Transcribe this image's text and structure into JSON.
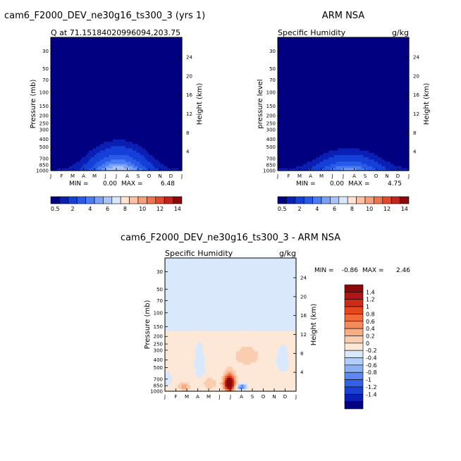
{
  "chart_data": [
    {
      "type": "heatmap",
      "panel_title": "cam6_F2000_DEV_ne30g16_ts300_3 (yrs 1)",
      "left_label": "Q at 71.15184020996094,203.75",
      "right_label": "",
      "ylabel_left": "Pressure (mb)",
      "ylabel_right": "Height (km)",
      "min_label": "MIN =",
      "min_value": "0.00",
      "max_label": "MAX =",
      "max_value": "6.48",
      "months": [
        "J",
        "F",
        "M",
        "A",
        "M",
        "J",
        "J",
        "A",
        "S",
        "O",
        "N",
        "D",
        "J"
      ],
      "pressure_levels": [
        30,
        50,
        70,
        100,
        150,
        200,
        250,
        300,
        400,
        500,
        700,
        850,
        1000
      ],
      "pressure_range": [
        20,
        1000
      ],
      "height_ticks": [
        4,
        8,
        12,
        16,
        20,
        24
      ],
      "profile": "q_model",
      "peak": 6.48
    },
    {
      "type": "heatmap",
      "panel_title": "ARM NSA",
      "left_label": "Specific Humidity",
      "right_label": "g/kg",
      "ylabel_left": "pressure level",
      "ylabel_right": "Height (km)",
      "min_label": "MIN =",
      "min_value": "0.00",
      "max_label": "MAX =",
      "max_value": "4.75",
      "months": [
        "J",
        "F",
        "M",
        "A",
        "M",
        "J",
        "J",
        "A",
        "S",
        "O",
        "N",
        "D",
        "J"
      ],
      "pressure_levels": [
        30,
        50,
        70,
        100,
        150,
        200,
        250,
        300,
        400,
        500,
        700,
        850,
        1000
      ],
      "pressure_range": [
        20,
        1000
      ],
      "height_ticks": [
        4,
        8,
        12,
        16,
        20,
        24
      ],
      "profile": "q_obs",
      "peak": 4.75
    },
    {
      "type": "heatmap",
      "panel_title": "cam6_F2000_DEV_ne30g16_ts300_3 - ARM NSA",
      "left_label": "Specific Humidity",
      "right_label": "g/kg",
      "ylabel_left": "Pressure (mb)",
      "ylabel_right": "Height (km)",
      "min_label": "MIN =",
      "min_value": "-0.86",
      "max_label": "MAX =",
      "max_value": "2.46",
      "months": [
        "J",
        "F",
        "M",
        "A",
        "M",
        "J",
        "J",
        "A",
        "S",
        "O",
        "N",
        "D",
        "J"
      ],
      "pressure_levels": [
        30,
        50,
        70,
        100,
        150,
        200,
        250,
        300,
        400,
        500,
        700,
        850,
        1000
      ],
      "pressure_range": [
        20,
        1000
      ],
      "height_ticks": [
        4,
        8,
        12,
        16,
        20,
        24
      ],
      "profile": "diff"
    }
  ],
  "colorbar_q": {
    "labels": [
      "0.5",
      "2",
      "4",
      "6",
      "8",
      "10",
      "12",
      "14"
    ],
    "colors": [
      "#000080",
      "#0a1fb4",
      "#1440d8",
      "#2a5ae8",
      "#4a7cf5",
      "#7aa0f7",
      "#a9c4f8",
      "#d8e7fb",
      "#fde4d4",
      "#f9c2a6",
      "#f59e78",
      "#ef744e",
      "#e04a2c",
      "#c2231a",
      "#8a0a0a"
    ]
  },
  "colorbar_diff": {
    "labels": [
      "1.4",
      "1.2",
      "1",
      "0.8",
      "0.6",
      "0.4",
      "0.2",
      "0",
      "-0.2",
      "-0.4",
      "-0.6",
      "-0.8",
      "-1",
      "-1.2",
      "-1.4"
    ],
    "colors": [
      "#8a0a0a",
      "#b01616",
      "#cf2a18",
      "#e5481c",
      "#f06a3a",
      "#f58a5a",
      "#f8ac84",
      "#fbcdb0",
      "#fde8d8",
      "#d9e8fb",
      "#b3cdf7",
      "#8db0f3",
      "#5c87ee",
      "#3361e6",
      "#1a3fd2",
      "#0a1fb4",
      "#000080"
    ]
  }
}
